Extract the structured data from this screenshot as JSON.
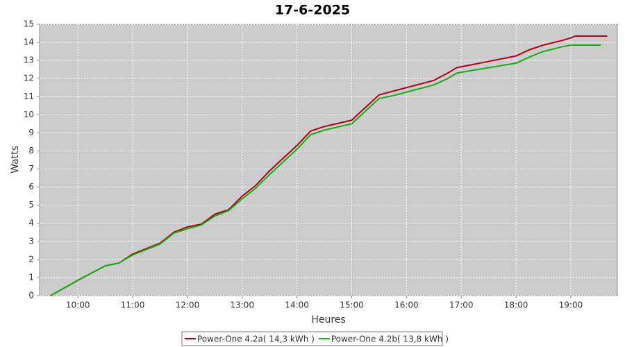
{
  "chart_data": {
    "type": "line",
    "title": "17-6-2025",
    "xlabel": "Heures",
    "ylabel": "Watts",
    "x": [
      570,
      600,
      630,
      645,
      660,
      690,
      705,
      720,
      735,
      750,
      765,
      780,
      795,
      810,
      840,
      855,
      870,
      900,
      915,
      930,
      945,
      960,
      990,
      1005,
      1015,
      1020,
      1050,
      1080,
      1095,
      1110,
      1130,
      1140,
      1145,
      1173,
      1180
    ],
    "series": [
      {
        "name": "Power-One 4.2a( 14,3 kWh )",
        "color": "#b00018",
        "values": [
          0,
          0.85,
          1.65,
          1.8,
          2.3,
          2.9,
          3.5,
          3.8,
          3.95,
          4.5,
          4.75,
          5.5,
          6.1,
          6.9,
          8.3,
          9.1,
          9.35,
          9.7,
          10.4,
          11.1,
          11.3,
          11.5,
          11.9,
          12.3,
          12.6,
          12.65,
          12.95,
          13.25,
          13.6,
          13.85,
          14.1,
          14.25,
          14.35,
          14.35,
          14.35
        ]
      },
      {
        "name": "Power-One 4.2b( 13,8 kWh )",
        "color": "#10b010",
        "values": [
          0,
          0.85,
          1.65,
          1.8,
          2.25,
          2.85,
          3.45,
          3.7,
          3.9,
          4.4,
          4.7,
          5.35,
          5.95,
          6.7,
          8.1,
          8.9,
          9.15,
          9.5,
          10.2,
          10.9,
          11.05,
          11.25,
          11.65,
          12.0,
          12.3,
          12.35,
          12.6,
          12.85,
          13.2,
          13.5,
          13.75,
          13.85,
          13.85,
          13.85,
          null
        ]
      }
    ],
    "xlim": [
      558,
      1191
    ],
    "xticks": [
      {
        "value": 600,
        "label": "10:00"
      },
      {
        "value": 660,
        "label": "11:00"
      },
      {
        "value": 720,
        "label": "12:00"
      },
      {
        "value": 780,
        "label": "13:00"
      },
      {
        "value": 840,
        "label": "14:00"
      },
      {
        "value": 900,
        "label": "15:00"
      },
      {
        "value": 960,
        "label": "16:00"
      },
      {
        "value": 1020,
        "label": "17:00"
      },
      {
        "value": 1080,
        "label": "18:00"
      },
      {
        "value": 1140,
        "label": "19:00"
      }
    ],
    "ylim": [
      0,
      15
    ],
    "yticks": [
      0,
      1,
      2,
      3,
      4,
      5,
      6,
      7,
      8,
      9,
      10,
      11,
      12,
      13,
      14,
      15
    ],
    "grid": true
  }
}
